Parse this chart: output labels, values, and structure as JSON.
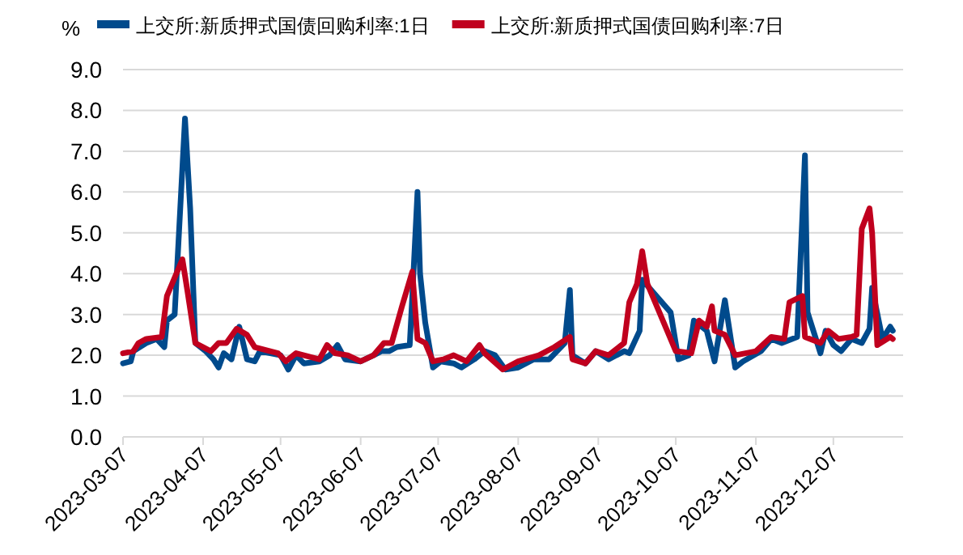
{
  "chart_data": {
    "type": "line",
    "ylabel": "%",
    "legend": "top",
    "grid": "y",
    "xlim": [
      "2023-03-07",
      "2024-01-03"
    ],
    "xticks": [
      "2023-03-07",
      "2023-04-07",
      "2023-05-07",
      "2023-06-07",
      "2023-07-07",
      "2023-08-07",
      "2023-09-07",
      "2023-10-07",
      "2023-11-07",
      "2023-12-07"
    ],
    "ylim": [
      0,
      9
    ],
    "yticks": [
      {
        "value": 0,
        "label": "0.0"
      },
      {
        "value": 1,
        "label": "1.0"
      },
      {
        "value": 2,
        "label": "2.0"
      },
      {
        "value": 3,
        "label": "3.0"
      },
      {
        "value": 4,
        "label": "4.0"
      },
      {
        "value": 5,
        "label": "5.0"
      },
      {
        "value": 6,
        "label": "6.0"
      },
      {
        "value": 7,
        "label": "7.0"
      },
      {
        "value": 8,
        "label": "8.0"
      },
      {
        "value": 9,
        "label": "9.0"
      }
    ],
    "series": [
      {
        "name": "上交所:新质押式国债回购利率:1日",
        "color": "#004a8c",
        "x": [
          "2023-03-07",
          "2023-03-10",
          "2023-03-11",
          "2023-03-16",
          "2023-03-20",
          "2023-03-23",
          "2023-03-24",
          "2023-03-27",
          "2023-03-31",
          "2023-04-02",
          "2023-04-04",
          "2023-04-08",
          "2023-04-11",
          "2023-04-13",
          "2023-04-15",
          "2023-04-18",
          "2023-04-21",
          "2023-04-24",
          "2023-04-27",
          "2023-04-29",
          "2023-05-07",
          "2023-05-10",
          "2023-05-13",
          "2023-05-16",
          "2023-05-22",
          "2023-05-26",
          "2023-05-29",
          "2023-06-01",
          "2023-06-07",
          "2023-06-12",
          "2023-06-15",
          "2023-06-18",
          "2023-06-21",
          "2023-06-26",
          "2023-06-27",
          "2023-06-29",
          "2023-06-30",
          "2023-07-02",
          "2023-07-05",
          "2023-07-08",
          "2023-07-13",
          "2023-07-16",
          "2023-07-21",
          "2023-07-24",
          "2023-07-25",
          "2023-07-29",
          "2023-08-02",
          "2023-08-07",
          "2023-08-13",
          "2023-08-19",
          "2023-08-22",
          "2023-08-25",
          "2023-08-27",
          "2023-08-28",
          "2023-09-02",
          "2023-09-06",
          "2023-09-11",
          "2023-09-17",
          "2023-09-19",
          "2023-09-23",
          "2023-09-24",
          "2023-10-05",
          "2023-10-08",
          "2023-10-12",
          "2023-10-14",
          "2023-10-19",
          "2023-10-22",
          "2023-10-26",
          "2023-10-30",
          "2023-11-02",
          "2023-11-09",
          "2023-11-13",
          "2023-11-17",
          "2023-11-23",
          "2023-11-26",
          "2023-11-27",
          "2023-12-02",
          "2023-12-04",
          "2023-12-07",
          "2023-12-10",
          "2023-12-14",
          "2023-12-18",
          "2023-12-21",
          "2023-12-22",
          "2023-12-26",
          "2023-12-29",
          "2023-12-30"
        ],
        "values": [
          1.8,
          1.85,
          2.1,
          2.3,
          2.4,
          2.2,
          2.85,
          3.0,
          7.8,
          5.6,
          2.3,
          2.1,
          1.9,
          1.7,
          2.05,
          1.9,
          2.7,
          1.9,
          1.85,
          2.1,
          2.0,
          1.65,
          2.0,
          1.8,
          1.85,
          2.0,
          2.25,
          1.9,
          1.85,
          2.0,
          2.1,
          2.1,
          2.2,
          2.25,
          3.45,
          6.0,
          4.0,
          2.8,
          1.7,
          1.85,
          1.8,
          1.7,
          1.9,
          2.05,
          2.1,
          2.0,
          1.65,
          1.7,
          1.9,
          1.9,
          2.1,
          2.3,
          3.6,
          2.0,
          1.8,
          2.1,
          1.9,
          2.1,
          2.05,
          2.6,
          3.85,
          3.05,
          1.9,
          2.0,
          2.85,
          2.6,
          1.85,
          3.35,
          1.7,
          1.85,
          2.1,
          2.4,
          2.3,
          2.45,
          6.9,
          3.05,
          2.05,
          2.6,
          2.25,
          2.1,
          2.4,
          2.3,
          2.65,
          3.65,
          2.4,
          2.7,
          2.6
        ]
      },
      {
        "name": "上交所:新质押式国债回购利率:7日",
        "color": "#c0001e",
        "x": [
          "2023-03-07",
          "2023-03-11",
          "2023-03-13",
          "2023-03-16",
          "2023-03-22",
          "2023-03-24",
          "2023-03-28",
          "2023-03-30",
          "2023-04-01",
          "2023-04-04",
          "2023-04-10",
          "2023-04-13",
          "2023-04-16",
          "2023-04-20",
          "2023-04-24",
          "2023-04-27",
          "2023-05-06",
          "2023-05-09",
          "2023-05-13",
          "2023-05-16",
          "2023-05-22",
          "2023-05-25",
          "2023-05-28",
          "2023-06-02",
          "2023-06-07",
          "2023-06-12",
          "2023-06-16",
          "2023-06-19",
          "2023-06-23",
          "2023-06-27",
          "2023-06-29",
          "2023-07-02",
          "2023-07-05",
          "2023-07-09",
          "2023-07-13",
          "2023-07-18",
          "2023-07-23",
          "2023-07-25",
          "2023-08-01",
          "2023-08-07",
          "2023-08-15",
          "2023-08-21",
          "2023-08-27",
          "2023-08-28",
          "2023-09-02",
          "2023-09-06",
          "2023-09-11",
          "2023-09-17",
          "2023-09-19",
          "2023-09-22",
          "2023-09-24",
          "2023-09-26",
          "2023-10-07",
          "2023-10-13",
          "2023-10-16",
          "2023-10-19",
          "2023-10-21",
          "2023-10-22",
          "2023-10-26",
          "2023-10-30",
          "2023-11-07",
          "2023-11-13",
          "2023-11-18",
          "2023-11-20",
          "2023-11-25",
          "2023-11-26",
          "2023-12-02",
          "2023-12-05",
          "2023-12-09",
          "2023-12-14",
          "2023-12-16",
          "2023-12-18",
          "2023-12-21",
          "2023-12-22",
          "2023-12-24",
          "2023-12-29",
          "2023-12-30"
        ],
        "values": [
          2.05,
          2.1,
          2.3,
          2.4,
          2.45,
          3.45,
          4.05,
          4.35,
          3.55,
          2.3,
          2.1,
          2.3,
          2.3,
          2.65,
          2.5,
          2.2,
          2.05,
          1.85,
          2.05,
          2.0,
          1.9,
          2.25,
          2.05,
          2.0,
          1.85,
          2.0,
          2.3,
          2.3,
          3.2,
          4.05,
          2.4,
          2.3,
          1.85,
          1.9,
          2.0,
          1.85,
          2.25,
          2.05,
          1.65,
          1.85,
          2.0,
          2.2,
          2.45,
          1.9,
          1.8,
          2.1,
          2.0,
          2.3,
          3.3,
          3.75,
          4.55,
          3.75,
          2.1,
          2.05,
          2.85,
          2.7,
          3.2,
          2.6,
          2.5,
          2.0,
          2.1,
          2.45,
          2.4,
          3.3,
          3.45,
          2.45,
          2.3,
          2.6,
          2.4,
          2.45,
          2.5,
          5.1,
          5.6,
          5.0,
          2.25,
          2.45,
          2.4
        ]
      }
    ]
  }
}
